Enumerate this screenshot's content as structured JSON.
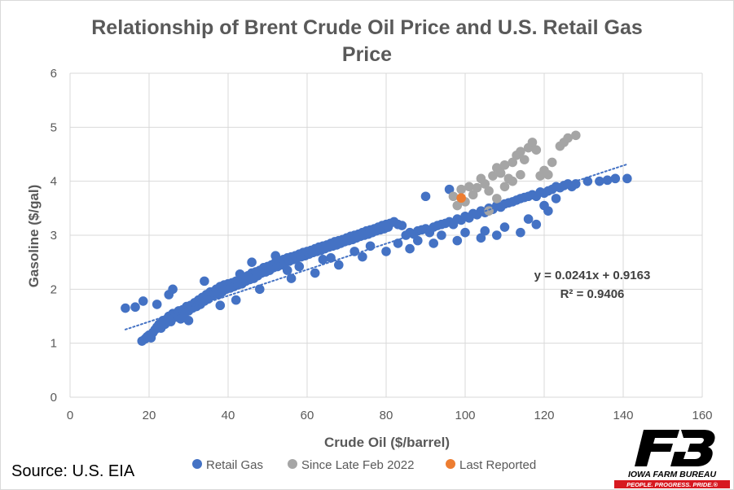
{
  "chart_data": {
    "type": "scatter",
    "title_lines": [
      "Relationship of Brent Crude Oil Price and U.S. Retail Gas",
      "Price"
    ],
    "xlabel": "Crude Oil ($/barrel)",
    "ylabel": "Gasoline ($/gal)",
    "xlim": [
      0,
      160
    ],
    "ylim": [
      0,
      6
    ],
    "xticks": [
      0,
      20,
      40,
      60,
      80,
      100,
      120,
      140,
      160
    ],
    "yticks": [
      0,
      1,
      2,
      3,
      4,
      5,
      6
    ],
    "grid": true,
    "legend_position": "bottom",
    "series": [
      {
        "name": "Retail Gas",
        "color": "#4472C4",
        "points": [
          [
            14,
            1.65
          ],
          [
            16.5,
            1.67
          ],
          [
            18.5,
            1.78
          ],
          [
            18.2,
            1.04
          ],
          [
            19,
            1.08
          ],
          [
            19.5,
            1.12
          ],
          [
            20,
            1.15
          ],
          [
            20.5,
            1.1
          ],
          [
            21,
            1.2
          ],
          [
            21.5,
            1.25
          ],
          [
            22,
            1.3
          ],
          [
            22.5,
            1.35
          ],
          [
            23,
            1.28
          ],
          [
            23.5,
            1.42
          ],
          [
            24,
            1.35
          ],
          [
            24.5,
            1.45
          ],
          [
            25,
            1.5
          ],
          [
            25.5,
            1.4
          ],
          [
            26,
            1.55
          ],
          [
            26.5,
            1.48
          ],
          [
            27,
            1.52
          ],
          [
            27.5,
            1.6
          ],
          [
            28,
            1.45
          ],
          [
            28.5,
            1.62
          ],
          [
            29,
            1.55
          ],
          [
            29.5,
            1.68
          ],
          [
            30,
            1.6
          ],
          [
            30.5,
            1.7
          ],
          [
            31,
            1.65
          ],
          [
            31.5,
            1.75
          ],
          [
            32,
            1.68
          ],
          [
            32.5,
            1.8
          ],
          [
            33,
            1.72
          ],
          [
            33.5,
            1.85
          ],
          [
            34,
            1.78
          ],
          [
            34.5,
            1.9
          ],
          [
            35,
            1.82
          ],
          [
            35.5,
            1.95
          ],
          [
            36,
            1.88
          ],
          [
            36.5,
            1.92
          ],
          [
            37,
            2.0
          ],
          [
            37.5,
            1.9
          ],
          [
            38,
            2.05
          ],
          [
            38.5,
            1.95
          ],
          [
            39,
            2.08
          ],
          [
            39.5,
            2.0
          ],
          [
            40,
            2.1
          ],
          [
            40.5,
            2.02
          ],
          [
            41,
            2.12
          ],
          [
            41.5,
            2.05
          ],
          [
            42,
            2.15
          ],
          [
            42.5,
            2.08
          ],
          [
            43,
            2.18
          ],
          [
            43.5,
            2.1
          ],
          [
            44,
            2.2
          ],
          [
            44.5,
            2.15
          ],
          [
            45,
            2.25
          ],
          [
            45.5,
            2.18
          ],
          [
            46,
            2.3
          ],
          [
            46.5,
            2.2
          ],
          [
            47,
            2.32
          ],
          [
            47.5,
            2.25
          ],
          [
            48,
            2.35
          ],
          [
            48.5,
            2.3
          ],
          [
            49,
            2.4
          ],
          [
            49.5,
            2.32
          ],
          [
            50,
            2.42
          ],
          [
            50.5,
            2.35
          ],
          [
            51,
            2.45
          ],
          [
            51.5,
            2.4
          ],
          [
            52,
            2.5
          ],
          [
            52.5,
            2.42
          ],
          [
            53,
            2.52
          ],
          [
            53.5,
            2.45
          ],
          [
            54,
            2.55
          ],
          [
            54.5,
            2.5
          ],
          [
            55,
            2.58
          ],
          [
            55.5,
            2.52
          ],
          [
            56,
            2.6
          ],
          [
            56.5,
            2.55
          ],
          [
            57,
            2.62
          ],
          [
            57.5,
            2.58
          ],
          [
            58,
            2.65
          ],
          [
            58.5,
            2.6
          ],
          [
            59,
            2.68
          ],
          [
            59.5,
            2.62
          ],
          [
            60,
            2.7
          ],
          [
            60.5,
            2.65
          ],
          [
            61,
            2.72
          ],
          [
            61.5,
            2.68
          ],
          [
            62,
            2.75
          ],
          [
            62.5,
            2.7
          ],
          [
            63,
            2.78
          ],
          [
            63.5,
            2.72
          ],
          [
            64,
            2.8
          ],
          [
            64.5,
            2.75
          ],
          [
            65,
            2.82
          ],
          [
            65.5,
            2.78
          ],
          [
            66,
            2.85
          ],
          [
            66.5,
            2.8
          ],
          [
            67,
            2.88
          ],
          [
            67.5,
            2.82
          ],
          [
            68,
            2.9
          ],
          [
            68.5,
            2.85
          ],
          [
            69,
            2.92
          ],
          [
            69.5,
            2.88
          ],
          [
            70,
            2.95
          ],
          [
            70.5,
            2.9
          ],
          [
            71,
            2.98
          ],
          [
            71.5,
            2.92
          ],
          [
            72,
            3.0
          ],
          [
            72.5,
            2.95
          ],
          [
            73,
            3.02
          ],
          [
            73.5,
            2.98
          ],
          [
            74,
            3.05
          ],
          [
            74.5,
            3.0
          ],
          [
            75,
            3.08
          ],
          [
            75.5,
            3.02
          ],
          [
            76,
            3.1
          ],
          [
            76.5,
            3.05
          ],
          [
            77,
            3.12
          ],
          [
            77.5,
            3.08
          ],
          [
            78,
            3.15
          ],
          [
            78.5,
            3.1
          ],
          [
            79,
            3.18
          ],
          [
            79.5,
            3.12
          ],
          [
            80,
            3.2
          ],
          [
            80.5,
            3.15
          ],
          [
            81,
            3.22
          ],
          [
            82,
            3.25
          ],
          [
            83,
            3.2
          ],
          [
            84,
            3.18
          ],
          [
            85,
            3.0
          ],
          [
            86,
            3.05
          ],
          [
            87,
            3.02
          ],
          [
            88,
            3.08
          ],
          [
            89,
            3.1
          ],
          [
            90,
            3.12
          ],
          [
            91,
            3.05
          ],
          [
            92,
            3.15
          ],
          [
            93,
            3.18
          ],
          [
            94,
            3.2
          ],
          [
            95,
            3.22
          ],
          [
            96,
            3.25
          ],
          [
            97,
            3.2
          ],
          [
            98,
            3.3
          ],
          [
            99,
            3.28
          ],
          [
            100,
            3.35
          ],
          [
            101,
            3.32
          ],
          [
            102,
            3.4
          ],
          [
            103,
            3.38
          ],
          [
            104,
            3.45
          ],
          [
            105,
            3.42
          ],
          [
            106,
            3.5
          ],
          [
            107,
            3.48
          ],
          [
            108,
            3.55
          ],
          [
            109,
            3.52
          ],
          [
            110,
            3.58
          ],
          [
            111,
            3.6
          ],
          [
            112,
            3.62
          ],
          [
            113,
            3.65
          ],
          [
            114,
            3.68
          ],
          [
            115,
            3.7
          ],
          [
            116,
            3.72
          ],
          [
            117,
            3.75
          ],
          [
            118,
            3.72
          ],
          [
            119,
            3.8
          ],
          [
            120,
            3.78
          ],
          [
            121,
            3.82
          ],
          [
            122,
            3.85
          ],
          [
            123,
            3.9
          ],
          [
            124,
            3.88
          ],
          [
            125,
            3.92
          ],
          [
            126,
            3.95
          ],
          [
            127,
            3.9
          ],
          [
            128,
            3.95
          ],
          [
            131,
            4.0
          ],
          [
            134,
            4.0
          ],
          [
            136,
            4.02
          ],
          [
            138,
            4.05
          ],
          [
            141,
            4.05
          ],
          [
            90,
            3.72
          ],
          [
            96,
            3.85
          ],
          [
            120,
            3.55
          ],
          [
            123,
            3.68
          ],
          [
            26,
            2.0
          ],
          [
            22,
            1.72
          ],
          [
            25,
            1.9
          ],
          [
            34,
            2.15
          ],
          [
            43,
            2.28
          ],
          [
            46,
            2.5
          ],
          [
            52,
            2.62
          ],
          [
            55,
            2.35
          ],
          [
            58,
            2.42
          ],
          [
            64,
            2.55
          ],
          [
            66,
            2.58
          ],
          [
            72,
            2.7
          ],
          [
            76,
            2.8
          ],
          [
            83,
            2.85
          ],
          [
            88,
            2.9
          ],
          [
            94,
            3.0
          ],
          [
            100,
            3.05
          ],
          [
            105,
            3.08
          ],
          [
            110,
            3.15
          ],
          [
            116,
            3.3
          ],
          [
            121,
            3.45
          ],
          [
            30,
            1.42
          ],
          [
            38,
            1.7
          ],
          [
            42,
            1.8
          ],
          [
            48,
            2.0
          ],
          [
            56,
            2.2
          ],
          [
            62,
            2.3
          ],
          [
            68,
            2.45
          ],
          [
            74,
            2.6
          ],
          [
            80,
            2.7
          ],
          [
            86,
            2.75
          ],
          [
            92,
            2.85
          ],
          [
            98,
            2.9
          ],
          [
            104,
            2.95
          ],
          [
            108,
            3.0
          ],
          [
            114,
            3.05
          ],
          [
            118,
            3.2
          ]
        ]
      },
      {
        "name": "Since Late Feb 2022",
        "color": "#A5A5A5",
        "points": [
          [
            97,
            3.72
          ],
          [
            98,
            3.55
          ],
          [
            99,
            3.85
          ],
          [
            100,
            3.62
          ],
          [
            101,
            3.9
          ],
          [
            102,
            3.75
          ],
          [
            103,
            3.88
          ],
          [
            104,
            4.05
          ],
          [
            105,
            3.95
          ],
          [
            106,
            3.82
          ],
          [
            107,
            4.1
          ],
          [
            108,
            4.25
          ],
          [
            109,
            4.15
          ],
          [
            110,
            4.3
          ],
          [
            111,
            4.05
          ],
          [
            112,
            4.35
          ],
          [
            113,
            4.48
          ],
          [
            114,
            4.55
          ],
          [
            115,
            4.4
          ],
          [
            116,
            4.62
          ],
          [
            117,
            4.72
          ],
          [
            118,
            4.58
          ],
          [
            119,
            4.1
          ],
          [
            120,
            4.2
          ],
          [
            121,
            4.12
          ],
          [
            122,
            4.35
          ],
          [
            124,
            4.65
          ],
          [
            125,
            4.72
          ],
          [
            126,
            4.8
          ],
          [
            128,
            4.85
          ],
          [
            106,
            3.45
          ],
          [
            108,
            3.68
          ],
          [
            110,
            3.9
          ],
          [
            112,
            4.0
          ],
          [
            114,
            4.12
          ]
        ]
      },
      {
        "name": "Last Reported",
        "color": "#ED7D31",
        "points": [
          [
            99,
            3.69
          ]
        ]
      }
    ],
    "trendline": {
      "slope": 0.0241,
      "intercept": 0.9163,
      "x_range": [
        14,
        141
      ],
      "color": "#4472C4",
      "equation": "y = 0.0241x + 0.9163",
      "r_squared": "R² = 0.9406"
    }
  },
  "source": "Source: U.S. EIA",
  "logo": {
    "name": "IOWA FARM BUREAU",
    "tagline": "PEOPLE. PROGRESS. PRIDE.®",
    "mark_color": "#000000",
    "accent_color": "#D71920"
  }
}
